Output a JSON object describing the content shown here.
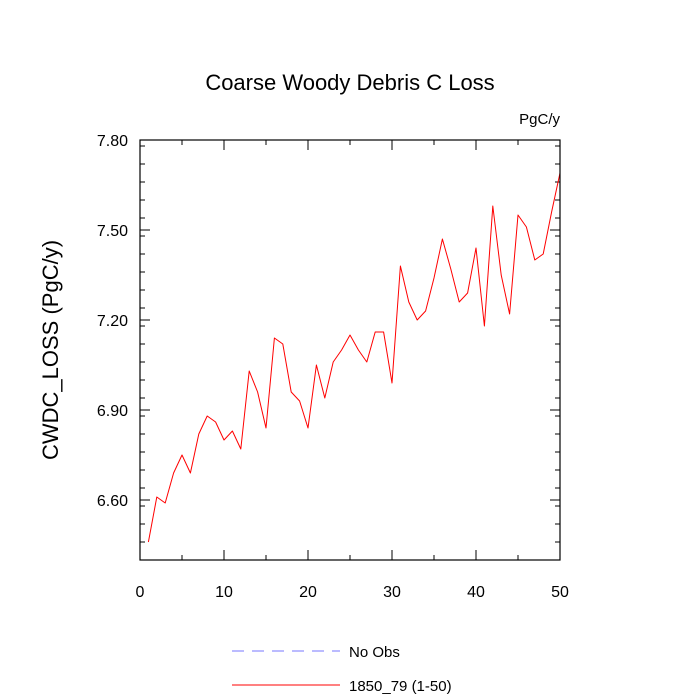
{
  "chart_data": {
    "type": "line",
    "title": "Coarse Woody Debris C Loss",
    "units_label": "PgC/y",
    "xlabel": "",
    "ylabel": "CWDC_LOSS  (PgC/y)",
    "xlim": [
      0,
      50
    ],
    "ylim": [
      6.4,
      7.8
    ],
    "x_ticks": [
      0,
      10,
      20,
      30,
      40,
      50
    ],
    "x_tick_labels": [
      "0",
      "10",
      "20",
      "30",
      "40",
      "50"
    ],
    "y_ticks": [
      6.6,
      6.9,
      7.2,
      7.5,
      7.8
    ],
    "y_tick_labels": [
      "6.60",
      "6.90",
      "7.20",
      "7.50",
      "7.80"
    ],
    "grid": false,
    "legend_position": "bottom",
    "series": [
      {
        "name": "No Obs",
        "color": "#7777ff",
        "dash": "dashed",
        "x": [],
        "values": []
      },
      {
        "name": "1850_79 (1-50)",
        "color": "#ff0000",
        "dash": "solid",
        "x": [
          1,
          2,
          3,
          4,
          5,
          6,
          7,
          8,
          9,
          10,
          11,
          12,
          13,
          14,
          15,
          16,
          17,
          18,
          19,
          20,
          21,
          22,
          23,
          24,
          25,
          26,
          27,
          28,
          29,
          30,
          31,
          32,
          33,
          34,
          35,
          36,
          37,
          38,
          39,
          40,
          41,
          42,
          43,
          44,
          45,
          46,
          47,
          48,
          49,
          50
        ],
        "values": [
          6.46,
          6.61,
          6.59,
          6.69,
          6.75,
          6.69,
          6.82,
          6.88,
          6.86,
          6.8,
          6.83,
          6.77,
          7.03,
          6.96,
          6.84,
          7.14,
          7.12,
          6.96,
          6.93,
          6.84,
          7.05,
          6.94,
          7.06,
          7.1,
          7.15,
          7.1,
          7.06,
          7.16,
          7.16,
          6.99,
          7.38,
          7.26,
          7.2,
          7.23,
          7.34,
          7.47,
          7.37,
          7.26,
          7.29,
          7.44,
          7.18,
          7.58,
          7.35,
          7.22,
          7.55,
          7.51,
          7.4,
          7.42,
          7.56,
          7.69
        ]
      }
    ]
  }
}
